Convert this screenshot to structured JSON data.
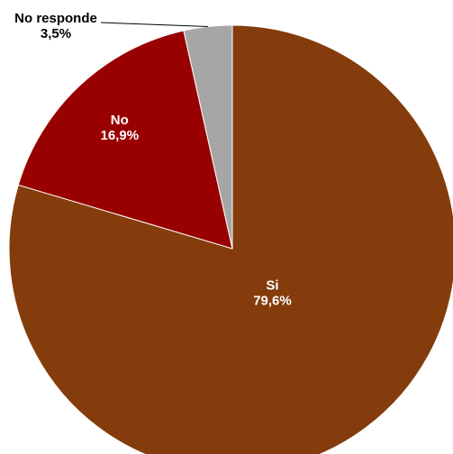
{
  "chart_data": {
    "type": "pie",
    "title": "",
    "slices": [
      {
        "label": "Si",
        "value": 79.6,
        "value_text": "79,6%",
        "color": "#843c0c",
        "label_color": "#ffffff"
      },
      {
        "label": "No",
        "value": 16.9,
        "value_text": "16,9%",
        "color": "#990000",
        "label_color": "#ffffff"
      },
      {
        "label": "No responde",
        "value": 3.5,
        "value_text": "3,5%",
        "color": "#a6a6a6",
        "label_color": "#000000"
      }
    ],
    "start_angle_deg": 0,
    "direction": "clockwise",
    "legend": "none"
  }
}
